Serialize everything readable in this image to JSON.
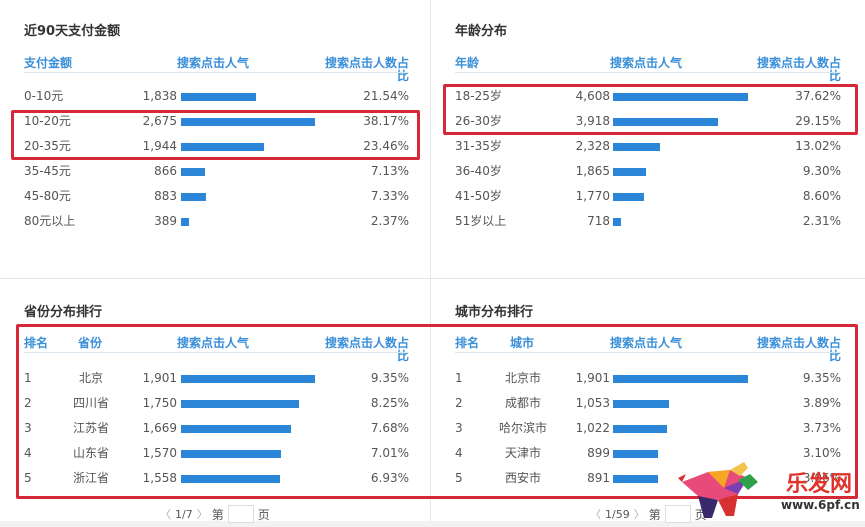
{
  "payment_panel": {
    "title": "近90天支付金额",
    "headers": {
      "label": "支付金额",
      "popularity": "搜索点击人气",
      "share": "搜索点击人数占比",
      "share_line1": "搜索点击人数占",
      "share_line2": "比"
    },
    "rows": [
      {
        "label": "0-10元",
        "value": "1,838",
        "pct": "21.54%",
        "bar": 75
      },
      {
        "label": "10-20元",
        "value": "2,675",
        "pct": "38.17%",
        "bar": 134
      },
      {
        "label": "20-35元",
        "value": "1,944",
        "pct": "23.46%",
        "bar": 83
      },
      {
        "label": "35-45元",
        "value": "866",
        "pct": "7.13%",
        "bar": 24
      },
      {
        "label": "45-80元",
        "value": "883",
        "pct": "7.33%",
        "bar": 25
      },
      {
        "label": "80元以上",
        "value": "389",
        "pct": "2.37%",
        "bar": 8
      }
    ]
  },
  "age_panel": {
    "title": "年龄分布",
    "headers": {
      "label": "年龄",
      "popularity": "搜索点击人气",
      "share_line1": "搜索点击人数占",
      "share_line2": "比"
    },
    "rows": [
      {
        "label": "18-25岁",
        "value": "4,608",
        "pct": "37.62%",
        "bar": 135
      },
      {
        "label": "26-30岁",
        "value": "3,918",
        "pct": "29.15%",
        "bar": 105
      },
      {
        "label": "31-35岁",
        "value": "2,328",
        "pct": "13.02%",
        "bar": 47
      },
      {
        "label": "36-40岁",
        "value": "1,865",
        "pct": "9.30%",
        "bar": 33
      },
      {
        "label": "41-50岁",
        "value": "1,770",
        "pct": "8.60%",
        "bar": 31
      },
      {
        "label": "51岁以上",
        "value": "718",
        "pct": "2.31%",
        "bar": 8
      }
    ]
  },
  "province_panel": {
    "title": "省份分布排行",
    "headers": {
      "rank": "排名",
      "label": "省份",
      "popularity": "搜索点击人气",
      "share_line1": "搜索点击人数占",
      "share_line2": "比"
    },
    "rows": [
      {
        "rank": "1",
        "label": "北京",
        "value": "1,901",
        "pct": "9.35%",
        "bar": 134
      },
      {
        "rank": "2",
        "label": "四川省",
        "value": "1,750",
        "pct": "8.25%",
        "bar": 118
      },
      {
        "rank": "3",
        "label": "江苏省",
        "value": "1,669",
        "pct": "7.68%",
        "bar": 110
      },
      {
        "rank": "4",
        "label": "山东省",
        "value": "1,570",
        "pct": "7.01%",
        "bar": 100
      },
      {
        "rank": "5",
        "label": "浙江省",
        "value": "1,558",
        "pct": "6.93%",
        "bar": 99
      }
    ],
    "pager": {
      "prev": "〈",
      "page": "1/7",
      "next": "〉",
      "goto_prefix": "第",
      "goto_suffix": "页",
      "goto_value": ""
    }
  },
  "city_panel": {
    "title": "城市分布排行",
    "headers": {
      "rank": "排名",
      "label": "城市",
      "popularity": "搜索点击人气",
      "share_line1": "搜索点击人数占",
      "share_line2": "比"
    },
    "rows": [
      {
        "rank": "1",
        "label": "北京市",
        "value": "1,901",
        "pct": "9.35%",
        "bar": 135
      },
      {
        "rank": "2",
        "label": "成都市",
        "value": "1,053",
        "pct": "3.89%",
        "bar": 56
      },
      {
        "rank": "3",
        "label": "哈尔滨市",
        "value": "1,022",
        "pct": "3.73%",
        "bar": 54
      },
      {
        "rank": "4",
        "label": "天津市",
        "value": "899",
        "pct": "3.10%",
        "bar": 45
      },
      {
        "rank": "5",
        "label": "西安市",
        "value": "891",
        "pct": "3.06%",
        "bar": 45
      }
    ],
    "pager": {
      "prev": "〈",
      "page": "1/59",
      "next": "〉",
      "goto_prefix": "第",
      "goto_suffix": "页",
      "goto_value": ""
    }
  },
  "watermark": {
    "brand": "乐发网",
    "url": "www.6pf.cn"
  },
  "colors": {
    "bar": "#2b86d8",
    "header": "#3a8fd8",
    "highlight_box": "#d7283a"
  }
}
